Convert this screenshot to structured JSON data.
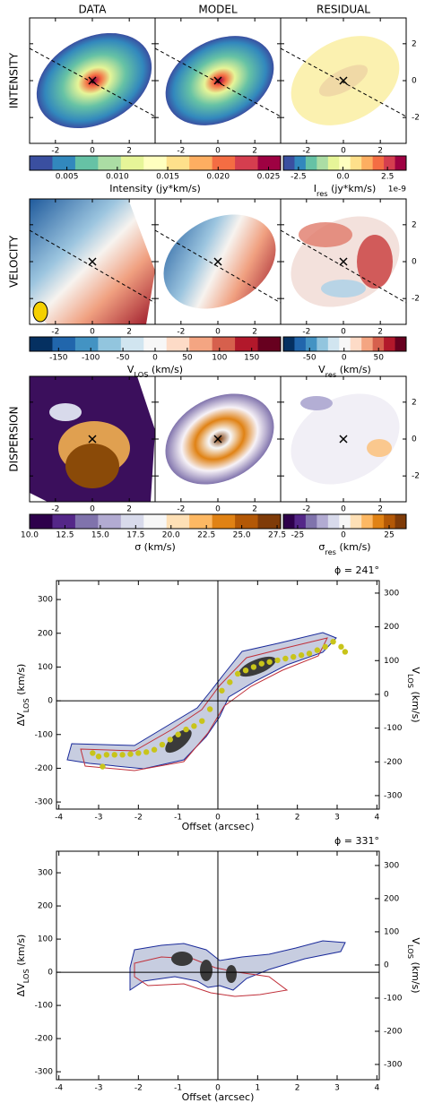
{
  "column_titles": [
    "DATA",
    "MODEL",
    "RESIDUAL"
  ],
  "map_axes": {
    "xlim": [
      -3.4,
      3.4
    ],
    "ylim": [
      -3.4,
      3.4
    ],
    "xticks": [
      -2,
      0,
      2
    ],
    "yticks": [
      -2,
      0,
      2
    ]
  },
  "rows": [
    {
      "label": "INTENSITY",
      "colorbars": [
        {
          "label": [
            {
              "text": "Intensity (jy*km/s)"
            }
          ],
          "lim": [
            0.0013,
            0.0262
          ],
          "ticks": [
            0.005,
            {
              "value": 0.01,
              "label": "0.010"
            },
            0.015,
            {
              "value": 0.02,
              "label": "0.020"
            },
            0.025
          ],
          "colors": [
            "#3a4fa0",
            "#3288bd",
            "#66c2a5",
            "#abdda4",
            "#e6f598",
            "#ffffbf",
            "#fee08b",
            "#fdae61",
            "#f46d43",
            "#d53e4f",
            "#9e0142"
          ]
        },
        {
          "label": [
            {
              "text": "I"
            },
            {
              "text": "res",
              "sub": true
            },
            {
              "text": " (jy*km/s)"
            }
          ],
          "offset": "1e-9",
          "lim": [
            -3.35,
            3.55
          ],
          "ticks": [
            -2.5,
            {
              "value": 0,
              "label": "0.0"
            },
            2.5
          ],
          "colors": [
            "#3a4fa0",
            "#3288bd",
            "#66c2a5",
            "#abdda4",
            "#e6f598",
            "#ffffbf",
            "#fee08b",
            "#fdae61",
            "#f46d43",
            "#d53e4f",
            "#9e0142"
          ]
        }
      ]
    },
    {
      "label": "VELOCITY",
      "colorbars": [
        {
          "label": [
            {
              "text": "V"
            },
            {
              "text": "LOS",
              "sub": true
            },
            {
              "text": " (km/s)"
            }
          ],
          "lim": [
            -195,
            195
          ],
          "ticks": [
            -150,
            -100,
            -50,
            0,
            50,
            100,
            150
          ],
          "colors": [
            "#053061",
            "#2166ac",
            "#4393c3",
            "#92c5de",
            "#d1e5f0",
            "#f7f7f7",
            "#fddbc7",
            "#f4a582",
            "#d6604d",
            "#b2182b",
            "#67001f"
          ]
        },
        {
          "label": [
            {
              "text": "V"
            },
            {
              "text": "res",
              "sub": true
            },
            {
              "text": " (km/s)"
            }
          ],
          "lim": [
            -88,
            90
          ],
          "ticks": [
            -50,
            0,
            50
          ],
          "colors": [
            "#053061",
            "#2166ac",
            "#4393c3",
            "#92c5de",
            "#d1e5f0",
            "#f7f7f7",
            "#fddbc7",
            "#f4a582",
            "#d6604d",
            "#b2182b",
            "#67001f"
          ]
        }
      ]
    },
    {
      "label": "DISPERSION",
      "colorbars": [
        {
          "label": [
            {
              "text": "σ (km/s)"
            }
          ],
          "lim": [
            10,
            27.75
          ],
          "ticks": [
            {
              "value": 10,
              "label": "10.0"
            },
            12.5,
            {
              "value": 15,
              "label": "15.0"
            },
            17.5,
            {
              "value": 20,
              "label": "20.0"
            },
            22.5,
            {
              "value": 25,
              "label": "25.0"
            },
            27.5
          ],
          "colors": [
            "#2d004b",
            "#542788",
            "#8073ac",
            "#b2abd2",
            "#d8daeb",
            "#f7f7f7",
            "#fee0b6",
            "#fdb863",
            "#e08214",
            "#b35806",
            "#7f3b08"
          ]
        },
        {
          "label": [
            {
              "text": "σ"
            },
            {
              "text": "res",
              "sub": true
            },
            {
              "text": " (km/s)"
            }
          ],
          "lim": [
            -32.8,
            34.3
          ],
          "ticks": [
            -25,
            0,
            25
          ],
          "colors": [
            "#2d004b",
            "#542788",
            "#8073ac",
            "#b2abd2",
            "#d8daeb",
            "#f7f7f7",
            "#fee0b6",
            "#fdb863",
            "#e08214",
            "#b35806",
            "#7f3b08"
          ]
        }
      ]
    }
  ],
  "pv_diagrams": [
    {
      "title": "ϕ = 241°",
      "xlabel": "Offset (arcsec)",
      "ylabel": [
        {
          "text": "ΔV"
        },
        {
          "text": "LOS",
          "sub": true
        },
        {
          "text": " (km/s)"
        }
      ],
      "y2label": [
        {
          "text": "V"
        },
        {
          "text": "LOS",
          "sub": true
        },
        {
          "text": " (km/s)"
        }
      ],
      "xlim": [
        -4.06,
        4.06
      ],
      "ylim": [
        -321,
        356
      ],
      "y2lim": [
        -340,
        337
      ],
      "xticks": [
        -4,
        -3,
        -2,
        -1,
        0,
        1,
        2,
        3,
        4
      ],
      "yticks": [
        -300,
        -200,
        -100,
        0,
        100,
        200,
        300
      ],
      "y2ticks": [
        -300,
        -200,
        -100,
        0,
        100,
        200,
        300
      ],
      "points": {
        "color": "#c8c41a",
        "x": [
          -3.15,
          -3.0,
          -2.9,
          -2.8,
          -2.6,
          -2.4,
          -2.2,
          -2.0,
          -1.8,
          -1.6,
          -1.4,
          -1.2,
          -1.0,
          -0.8,
          -0.6,
          -0.4,
          -0.2,
          0.1,
          0.3,
          0.5,
          0.7,
          0.9,
          1.1,
          1.3,
          1.5,
          1.7,
          1.9,
          2.1,
          2.3,
          2.5,
          2.7,
          2.9,
          3.1,
          3.2
        ],
        "y": [
          -155,
          -165,
          -195,
          -160,
          -160,
          -160,
          -158,
          -155,
          -152,
          -145,
          -130,
          -115,
          -100,
          -85,
          -75,
          -60,
          -25,
          30,
          55,
          80,
          90,
          100,
          110,
          115,
          120,
          125,
          130,
          135,
          140,
          150,
          160,
          175,
          160,
          145
        ]
      }
    },
    {
      "title": "ϕ = 331°",
      "xlabel": "Offset (arcsec)",
      "ylabel": [
        {
          "text": "ΔV"
        },
        {
          "text": "LOS",
          "sub": true
        },
        {
          "text": " (km/s)"
        }
      ],
      "y2label": [
        {
          "text": "V"
        },
        {
          "text": "LOS",
          "sub": true
        },
        {
          "text": " (km/s)"
        }
      ],
      "xlim": [
        -4.06,
        4.06
      ],
      "ylim": [
        -324,
        365
      ],
      "y2lim": [
        -346,
        343
      ],
      "xticks": [
        -4,
        -3,
        -2,
        -1,
        0,
        1,
        2,
        3,
        4
      ],
      "yticks": [
        -300,
        -200,
        -100,
        0,
        100,
        200,
        300
      ],
      "y2ticks": [
        -300,
        -200,
        -100,
        0,
        100,
        200,
        300
      ]
    }
  ]
}
